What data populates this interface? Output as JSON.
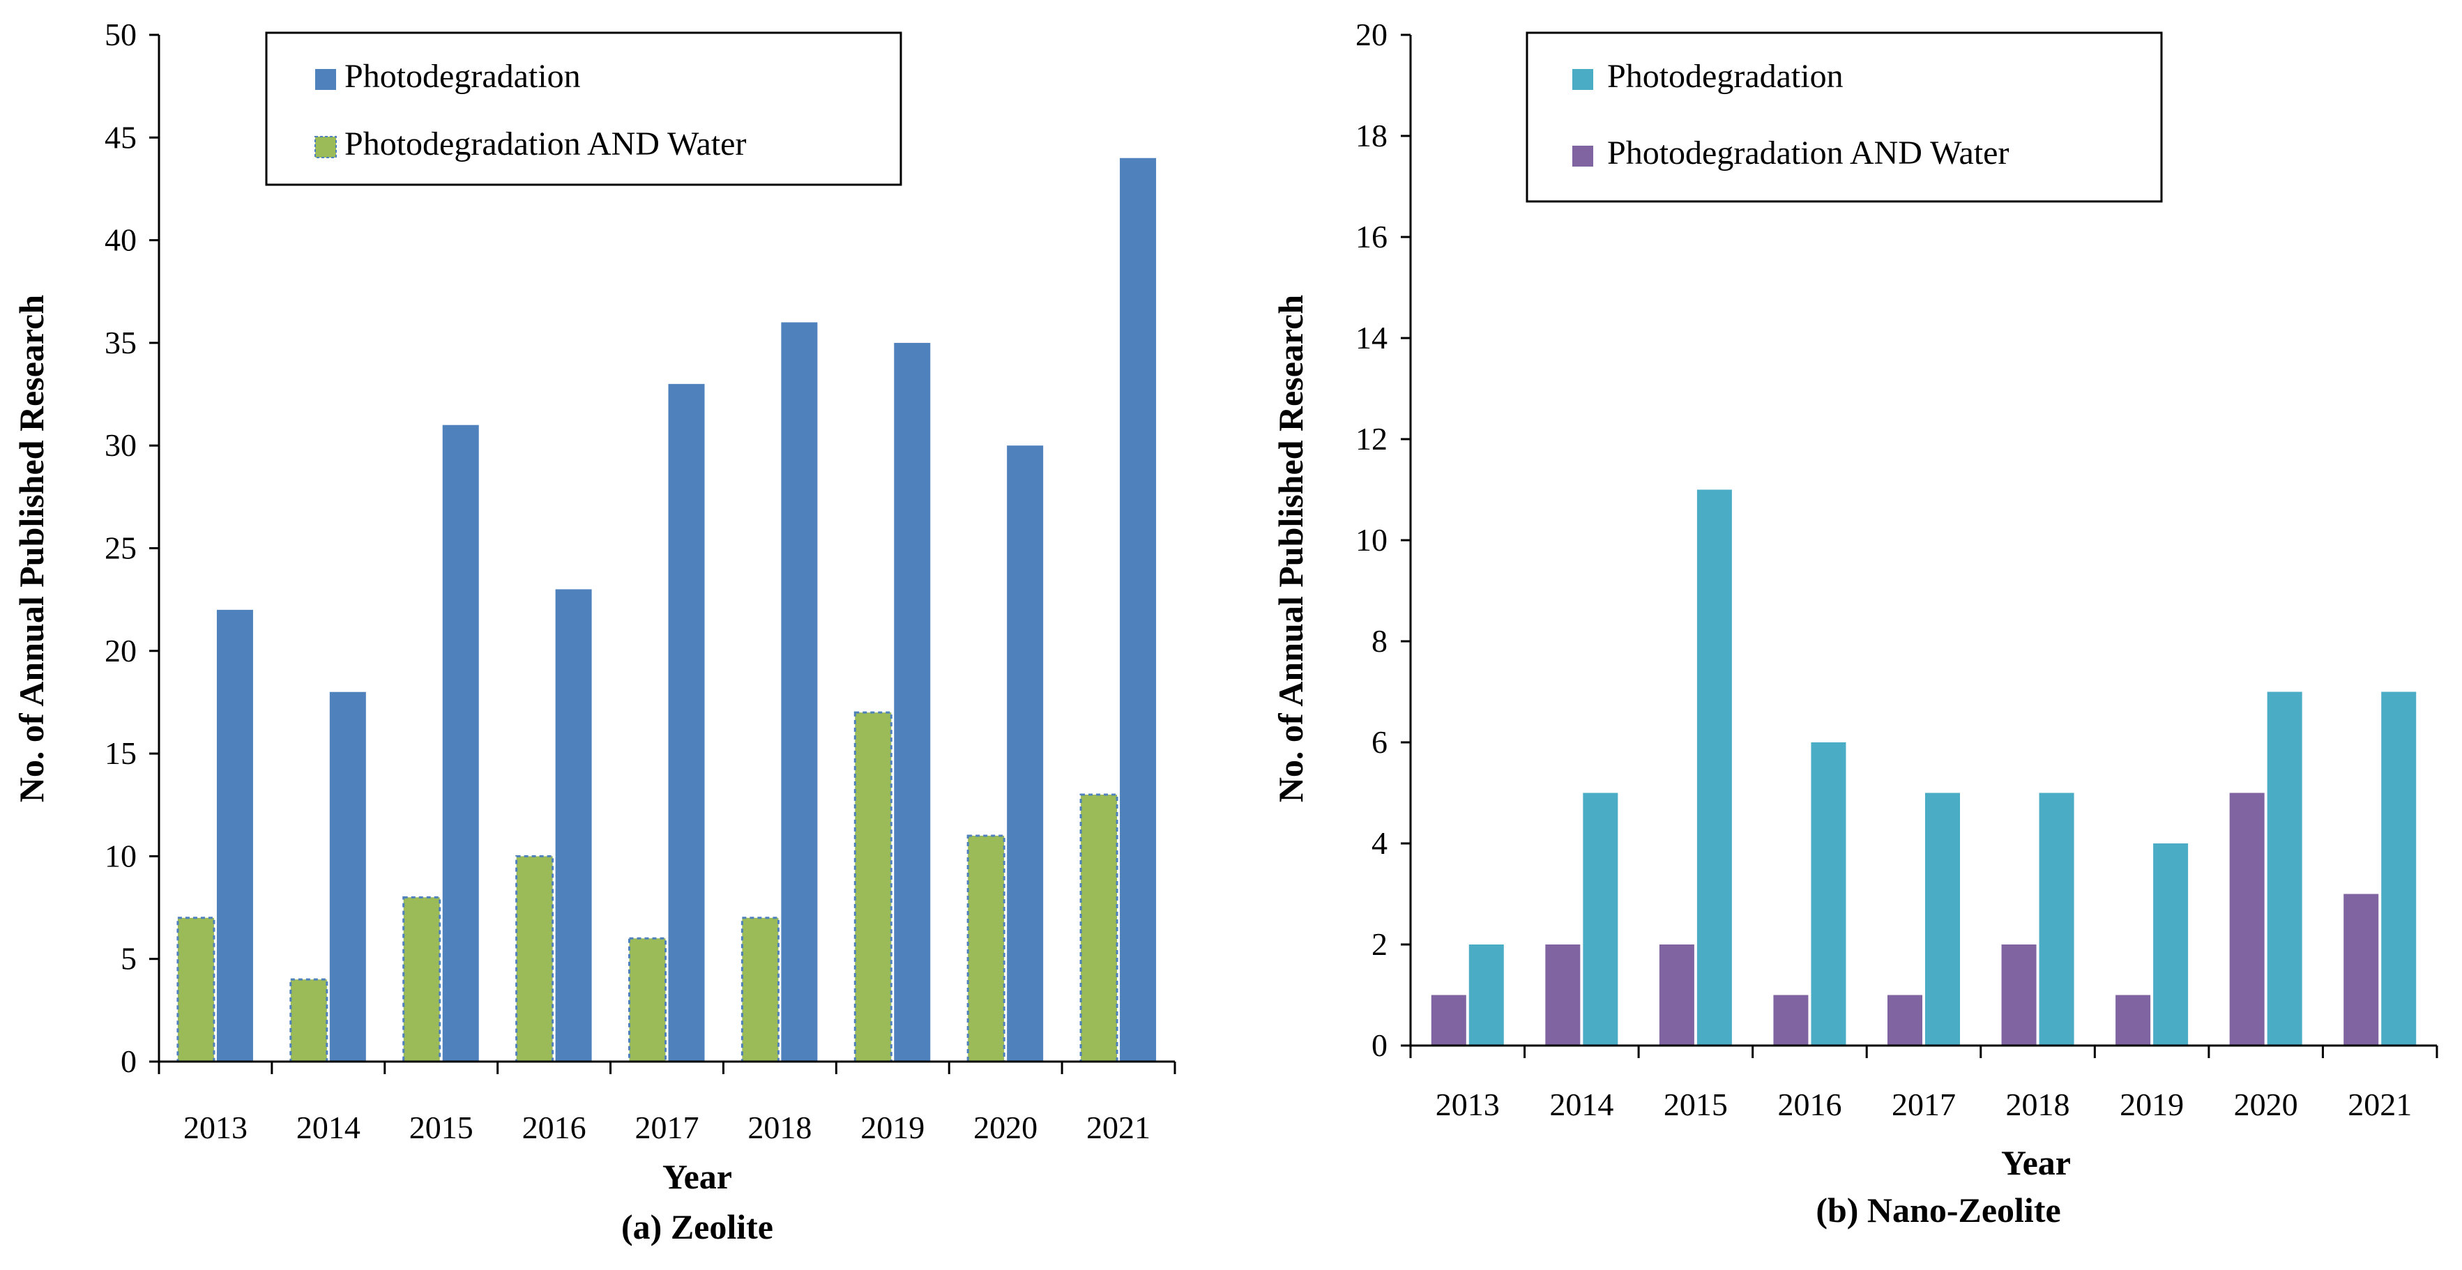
{
  "chart_data": [
    {
      "type": "bar",
      "caption": "(a) Zeolite",
      "xlabel": "Year",
      "ylabel": "No. of Annual Published Research",
      "categories": [
        "2013",
        "2014",
        "2015",
        "2016",
        "2017",
        "2018",
        "2019",
        "2020",
        "2021"
      ],
      "ylim": [
        0,
        50
      ],
      "yticks": [
        "0",
        "5",
        "10",
        "15",
        "20",
        "25",
        "30",
        "35",
        "40",
        "45",
        "50"
      ],
      "series": [
        {
          "name": "Photodegradation AND Water",
          "color": "#9BBB59",
          "values": [
            7,
            4,
            8,
            10,
            6,
            7,
            17,
            11,
            13
          ]
        },
        {
          "name": "Photodegradation",
          "color": "#4F81BD",
          "values": [
            22,
            18,
            31,
            23,
            33,
            36,
            35,
            30,
            44
          ]
        }
      ],
      "legend": [
        {
          "label": "Photodegradation",
          "color": "#4F81BD"
        },
        {
          "label": "Photodegradation AND Water",
          "color": "#9BBB59"
        }
      ],
      "grid": false
    },
    {
      "type": "bar",
      "caption": "(b) Nano-Zeolite",
      "xlabel": "Year",
      "ylabel": "No. of Annual Published Research",
      "categories": [
        "2013",
        "2014",
        "2015",
        "2016",
        "2017",
        "2018",
        "2019",
        "2020",
        "2021"
      ],
      "ylim": [
        0,
        20
      ],
      "yticks": [
        "0",
        "2",
        "4",
        "6",
        "8",
        "10",
        "12",
        "14",
        "16",
        "18",
        "20"
      ],
      "series": [
        {
          "name": "Photodegradation AND Water",
          "color": "#8064A2",
          "values": [
            1,
            2,
            2,
            1,
            1,
            2,
            1,
            5,
            3
          ]
        },
        {
          "name": "Photodegradation",
          "color": "#4BACC6",
          "values": [
            2,
            5,
            11,
            6,
            5,
            5,
            4,
            7,
            7
          ]
        }
      ],
      "legend": [
        {
          "label": "Photodegradation",
          "color": "#4BACC6"
        },
        {
          "label": "Photodegradation AND Water",
          "color": "#8064A2"
        }
      ],
      "grid": false
    }
  ]
}
